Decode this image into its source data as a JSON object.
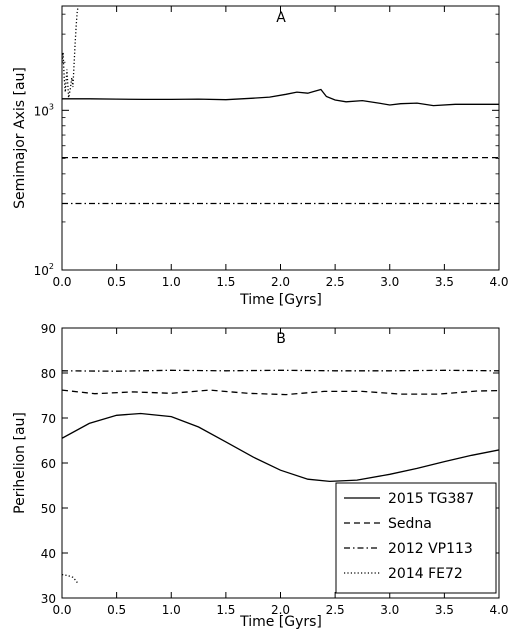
{
  "chart_data": [
    {
      "panel": "A",
      "type": "line",
      "title": "A",
      "xlabel": "Time [Gyrs]",
      "ylabel": "Semimajor Axis [au]",
      "xlim": [
        0,
        4
      ],
      "ylim": [
        100,
        4500
      ],
      "yscale": "log",
      "xticks": [
        "0.0",
        "0.5",
        "1.0",
        "1.5",
        "2.0",
        "2.5",
        "3.0",
        "3.5",
        "4.0"
      ],
      "yticks": [
        {
          "value": 100,
          "base": "10",
          "exp": "2"
        },
        {
          "value": 1000,
          "base": "10",
          "exp": "3"
        }
      ],
      "grid": false,
      "series": [
        {
          "name": "2015 TG387",
          "style": "solid",
          "x": [
            0.0,
            0.25,
            0.5,
            0.75,
            1.0,
            1.25,
            1.5,
            1.75,
            1.9,
            2.05,
            2.15,
            2.25,
            2.3,
            2.37,
            2.42,
            2.5,
            2.6,
            2.75,
            2.9,
            3.0,
            3.1,
            3.25,
            3.4,
            3.6,
            3.8,
            4.0
          ],
          "y": [
            1180,
            1180,
            1175,
            1170,
            1170,
            1175,
            1165,
            1190,
            1210,
            1260,
            1300,
            1280,
            1310,
            1350,
            1220,
            1160,
            1130,
            1150,
            1110,
            1080,
            1100,
            1110,
            1070,
            1090,
            1090,
            1090
          ]
        },
        {
          "name": "Sedna",
          "style": "dashed",
          "x": [
            0.0,
            0.5,
            1.0,
            1.5,
            2.0,
            2.5,
            3.0,
            3.5,
            4.0
          ],
          "y": [
            506,
            506,
            506,
            505,
            506,
            505,
            506,
            505,
            506
          ]
        },
        {
          "name": "2012 VP113",
          "style": "dashdot",
          "x": [
            0.0,
            0.5,
            1.0,
            1.5,
            2.0,
            2.5,
            3.0,
            3.5,
            4.0
          ],
          "y": [
            261,
            261,
            261,
            261,
            261,
            261,
            261,
            261,
            261
          ]
        },
        {
          "name": "2014 FE72",
          "style": "dotted",
          "x": [
            0.0,
            0.01,
            0.02,
            0.03,
            0.045,
            0.06,
            0.075,
            0.09,
            0.1,
            0.11,
            0.12,
            0.13,
            0.14,
            0.15
          ],
          "y": [
            2000,
            2300,
            1600,
            1300,
            1800,
            1200,
            1350,
            1600,
            1400,
            1900,
            2600,
            3400,
            4200,
            4500
          ]
        }
      ]
    },
    {
      "panel": "B",
      "type": "line",
      "title": "B",
      "xlabel": "Time [Gyrs]",
      "ylabel": "Perihelion [au]",
      "xlim": [
        0,
        4
      ],
      "ylim": [
        30,
        90
      ],
      "xticks": [
        "0.0",
        "0.5",
        "1.0",
        "1.5",
        "2.0",
        "2.5",
        "3.0",
        "3.5",
        "4.0"
      ],
      "yticks": [
        "30",
        "40",
        "50",
        "60",
        "70",
        "80",
        "90"
      ],
      "grid": false,
      "legend": "bottom-right",
      "series": [
        {
          "name": "2015 TG387",
          "style": "solid",
          "x": [
            0.0,
            0.25,
            0.5,
            0.72,
            1.0,
            1.25,
            1.5,
            1.75,
            2.0,
            2.25,
            2.45,
            2.7,
            3.0,
            3.25,
            3.5,
            3.75,
            4.0
          ],
          "y": [
            65.5,
            68.8,
            70.6,
            71.0,
            70.3,
            68.0,
            64.7,
            61.3,
            58.4,
            56.4,
            55.9,
            56.2,
            57.5,
            58.8,
            60.3,
            61.7,
            62.9
          ]
        },
        {
          "name": "Sedna",
          "style": "dashed",
          "x": [
            0.0,
            0.3,
            0.65,
            1.0,
            1.35,
            1.7,
            2.05,
            2.4,
            2.75,
            3.1,
            3.45,
            3.8,
            4.0
          ],
          "y": [
            76.2,
            75.4,
            75.8,
            75.5,
            76.2,
            75.5,
            75.2,
            75.9,
            75.9,
            75.3,
            75.3,
            76.0,
            76.1
          ]
        },
        {
          "name": "2012 VP113",
          "style": "dashdot",
          "x": [
            0.0,
            0.5,
            1.0,
            1.5,
            2.0,
            2.5,
            3.0,
            3.5,
            4.0
          ],
          "y": [
            80.5,
            80.4,
            80.6,
            80.5,
            80.6,
            80.5,
            80.5,
            80.6,
            80.5
          ]
        },
        {
          "name": "2014 FE72",
          "style": "dotted",
          "x": [
            0.0,
            0.05,
            0.1,
            0.13,
            0.15
          ],
          "y": [
            35.2,
            35.0,
            34.6,
            33.8,
            33.0
          ]
        }
      ]
    }
  ]
}
